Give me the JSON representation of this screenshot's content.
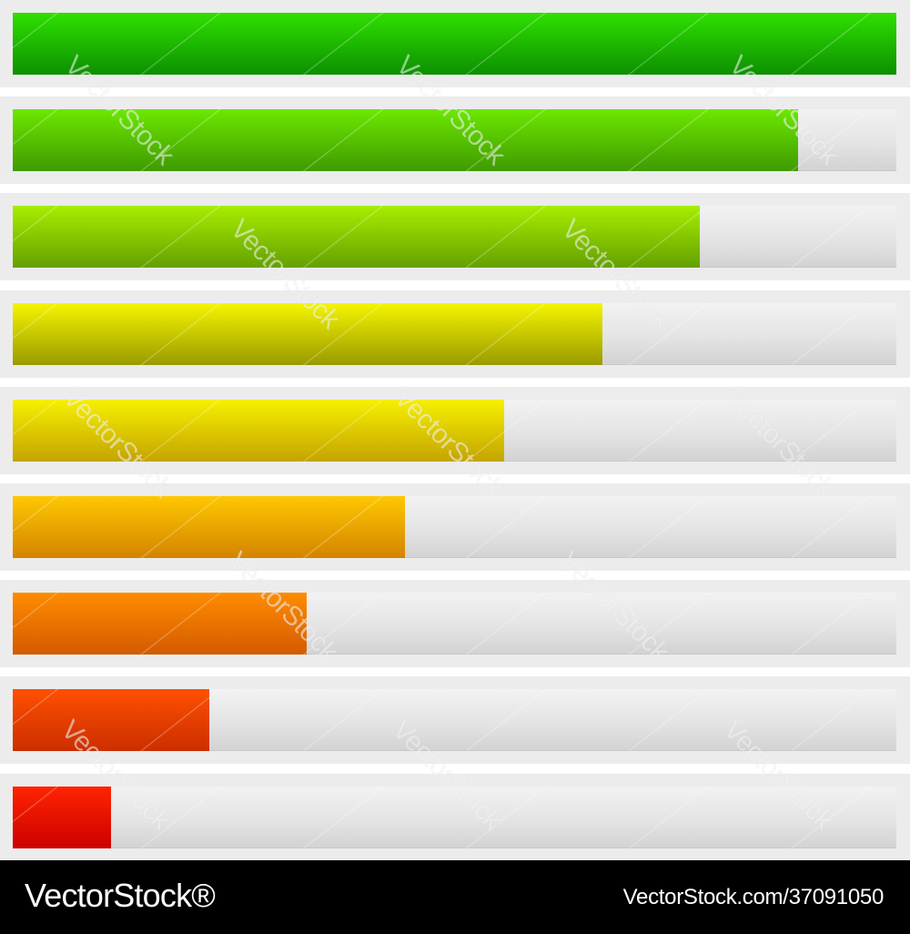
{
  "progress_bars": [
    {
      "level": 1.0,
      "color_top": "#2fe000",
      "color_bottom": "#0c9000"
    },
    {
      "level": 0.889,
      "color_top": "#6ce800",
      "color_bottom": "#3f9a00"
    },
    {
      "level": 0.778,
      "color_top": "#a8ee00",
      "color_bottom": "#64a000"
    },
    {
      "level": 0.667,
      "color_top": "#f5f500",
      "color_bottom": "#9a9a00"
    },
    {
      "level": 0.556,
      "color_top": "#f7f000",
      "color_bottom": "#c4a400"
    },
    {
      "level": 0.444,
      "color_top": "#ffc800",
      "color_bottom": "#d48400"
    },
    {
      "level": 0.333,
      "color_top": "#ff8c00",
      "color_bottom": "#d45a00"
    },
    {
      "level": 0.222,
      "color_top": "#ff5000",
      "color_bottom": "#cc2e00"
    },
    {
      "level": 0.111,
      "color_top": "#ff2400",
      "color_bottom": "#cc0000"
    }
  ],
  "watermark_text": "VectorStock",
  "footer": {
    "brand": "VectorStock®",
    "image_ref": "VectorStock.com/37091050"
  },
  "colors": {
    "row_background": "#ececec",
    "track": "#e4e4e4",
    "footer_background": "#000000"
  }
}
